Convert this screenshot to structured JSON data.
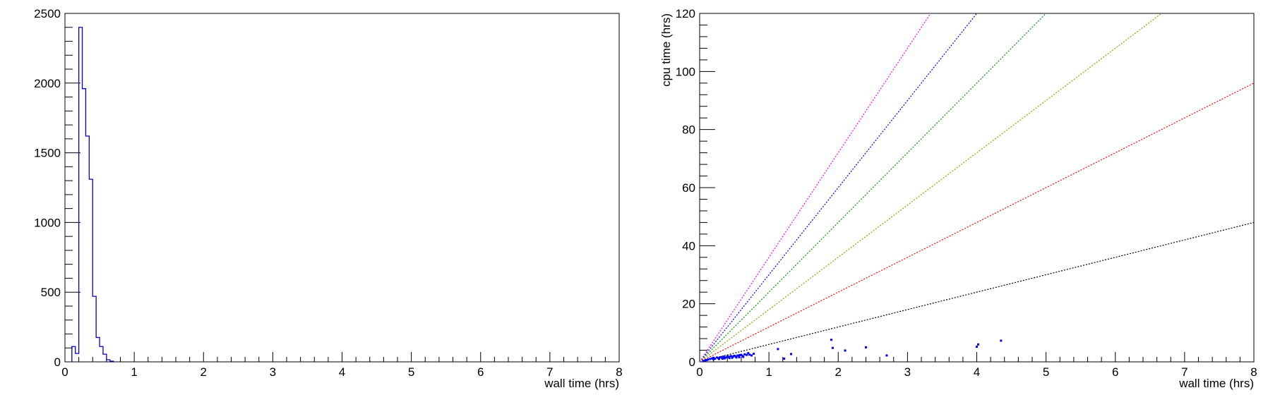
{
  "chart_data": [
    {
      "type": "histogram",
      "xlabel": "wall time (hrs)",
      "ylabel": "",
      "xlim": [
        0,
        8
      ],
      "ylim": [
        0,
        2500
      ],
      "xticks": [
        "0",
        "1",
        "2",
        "3",
        "4",
        "5",
        "6",
        "7",
        "8"
      ],
      "yticks": [
        "0",
        "500",
        "1000",
        "1500",
        "2000",
        "2500"
      ],
      "line_color": "#0000cc",
      "bin_width": 0.05,
      "bins": [
        {
          "x0": 0.1,
          "count": 110
        },
        {
          "x0": 0.15,
          "count": 60
        },
        {
          "x0": 0.2,
          "count": 2400
        },
        {
          "x0": 0.25,
          "count": 1960
        },
        {
          "x0": 0.3,
          "count": 1620
        },
        {
          "x0": 0.35,
          "count": 1310
        },
        {
          "x0": 0.4,
          "count": 470
        },
        {
          "x0": 0.45,
          "count": 175
        },
        {
          "x0": 0.5,
          "count": 110
        },
        {
          "x0": 0.55,
          "count": 55
        },
        {
          "x0": 0.6,
          "count": 15
        },
        {
          "x0": 0.65,
          "count": 5
        }
      ]
    },
    {
      "type": "scatter",
      "xlabel": "wall time (hrs)",
      "ylabel": "cpu time (hrs)",
      "xlim": [
        0,
        8
      ],
      "ylim": [
        0,
        120
      ],
      "xticks": [
        "0",
        "1",
        "2",
        "3",
        "4",
        "5",
        "6",
        "7",
        "8"
      ],
      "yticks": [
        "0",
        "20",
        "40",
        "60",
        "80",
        "100",
        "120"
      ],
      "reference_lines": [
        {
          "slope": 6,
          "color": "#000000"
        },
        {
          "slope": 12,
          "color": "#ff0000"
        },
        {
          "slope": 18,
          "color": "#999900"
        },
        {
          "slope": 24,
          "color": "#009900"
        },
        {
          "slope": 30,
          "color": "#0000ff"
        },
        {
          "slope": 36,
          "color": "#ff00ff"
        }
      ],
      "point_color": "#0000ff",
      "points": [
        [
          0.05,
          0.3
        ],
        [
          0.08,
          0.5
        ],
        [
          0.1,
          0.6
        ],
        [
          0.12,
          0.8
        ],
        [
          0.15,
          1.0
        ],
        [
          0.18,
          1.2
        ],
        [
          0.2,
          1.4
        ],
        [
          0.22,
          1.1
        ],
        [
          0.25,
          1.5
        ],
        [
          0.27,
          1.3
        ],
        [
          0.3,
          1.6
        ],
        [
          0.32,
          1.4
        ],
        [
          0.35,
          1.8
        ],
        [
          0.38,
          1.5
        ],
        [
          0.4,
          1.9
        ],
        [
          0.42,
          1.7
        ],
        [
          0.45,
          2.0
        ],
        [
          0.48,
          1.8
        ],
        [
          0.5,
          2.1
        ],
        [
          0.52,
          1.9
        ],
        [
          0.55,
          2.2
        ],
        [
          0.58,
          2.3
        ],
        [
          0.6,
          2.4
        ],
        [
          0.62,
          2.0
        ],
        [
          0.65,
          2.6
        ],
        [
          0.68,
          2.4
        ],
        [
          0.7,
          3.0
        ],
        [
          0.72,
          2.5
        ],
        [
          0.75,
          2.2
        ],
        [
          0.78,
          2.8
        ],
        [
          0.2,
          0.9
        ],
        [
          0.28,
          1.0
        ],
        [
          0.33,
          1.1
        ],
        [
          0.36,
          1.2
        ],
        [
          0.43,
          1.3
        ],
        [
          0.47,
          1.4
        ],
        [
          0.53,
          1.5
        ],
        [
          0.57,
          1.6
        ],
        [
          0.63,
          1.7
        ],
        [
          1.13,
          4.4
        ],
        [
          1.22,
          1.1
        ],
        [
          1.32,
          2.7
        ],
        [
          1.9,
          7.6
        ],
        [
          1.92,
          4.8
        ],
        [
          2.1,
          3.9
        ],
        [
          2.4,
          5.0
        ],
        [
          2.7,
          2.2
        ],
        [
          4.0,
          5.2
        ],
        [
          4.02,
          6.0
        ],
        [
          4.35,
          7.3
        ]
      ]
    }
  ]
}
